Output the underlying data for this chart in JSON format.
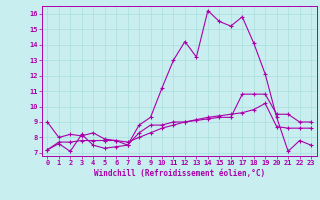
{
  "xlabel": "Windchill (Refroidissement éolien,°C)",
  "background_color": "#c8eef0",
  "grid_color": "#aadddd",
  "line_color": "#aa00aa",
  "xlim": [
    -0.5,
    23.5
  ],
  "ylim": [
    6.8,
    16.5
  ],
  "xticks": [
    0,
    1,
    2,
    3,
    4,
    5,
    6,
    7,
    8,
    9,
    10,
    11,
    12,
    13,
    14,
    15,
    16,
    17,
    18,
    19,
    20,
    21,
    22,
    23
  ],
  "yticks": [
    7,
    8,
    9,
    10,
    11,
    12,
    13,
    14,
    15,
    16
  ],
  "series1_y": [
    7.2,
    7.6,
    7.1,
    8.2,
    7.5,
    7.3,
    7.4,
    7.5,
    8.8,
    9.3,
    11.2,
    13.0,
    14.2,
    13.2,
    16.2,
    15.5,
    15.2,
    15.8,
    14.1,
    12.1,
    9.3,
    7.1,
    7.8,
    7.5
  ],
  "series2_y": [
    7.2,
    7.7,
    7.7,
    7.8,
    7.8,
    7.8,
    7.8,
    7.7,
    8.0,
    8.3,
    8.6,
    8.8,
    9.0,
    9.15,
    9.3,
    9.4,
    9.5,
    9.6,
    9.8,
    10.2,
    8.7,
    8.6,
    8.6,
    8.6
  ],
  "series3_y": [
    9.0,
    8.0,
    8.2,
    8.1,
    8.3,
    7.9,
    7.8,
    7.5,
    8.3,
    8.8,
    8.8,
    9.0,
    9.0,
    9.1,
    9.2,
    9.3,
    9.3,
    10.8,
    10.8,
    10.8,
    9.5,
    9.5,
    9.0,
    9.0
  ]
}
